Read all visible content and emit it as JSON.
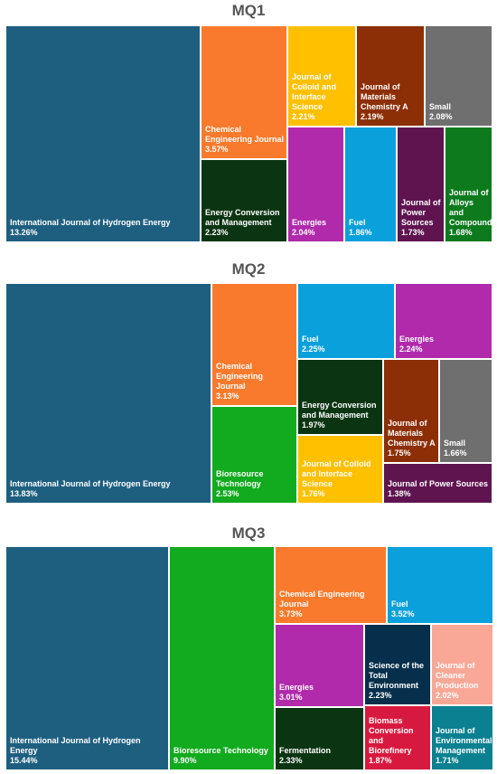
{
  "chart_data": [
    {
      "type": "treemap",
      "title": "MQ1",
      "tiles": [
        {
          "label": "International Journal of Hydrogen Energy",
          "value": "13.26%",
          "color": "#1E5F80"
        },
        {
          "label": "Chemical Engineering Journal",
          "value": "3.57%",
          "color": "#F97A2C"
        },
        {
          "label": "Energy Conversion and Management",
          "value": "2.23%",
          "color": "#0B3512"
        },
        {
          "label": "Journal of Colloid and Interface Science",
          "value": "2.21%",
          "color": "#FFC000"
        },
        {
          "label": "Energies",
          "value": "2.04%",
          "color": "#B02AAB"
        },
        {
          "label": "Journal of Materials Chemistry A",
          "value": "2.19%",
          "color": "#8C2F06"
        },
        {
          "label": "Fuel",
          "value": "1.86%",
          "color": "#0AA0DB"
        },
        {
          "label": "Small",
          "value": "2.08%",
          "color": "#6F6F6F"
        },
        {
          "label": "Journal of Power Sources",
          "value": "1.73%",
          "color": "#5F1450"
        },
        {
          "label": "Journal of Alloys and Compounds",
          "value": "1.68%",
          "color": "#0E7A1E"
        }
      ]
    },
    {
      "type": "treemap",
      "title": "MQ2",
      "tiles": [
        {
          "label": "International Journal of Hydrogen Energy",
          "value": "13.83%",
          "color": "#1E5F80"
        },
        {
          "label": "Chemical Engineering Journal",
          "value": "3.13%",
          "color": "#F97A2C"
        },
        {
          "label": "Bioresource Technology",
          "value": "2.53%",
          "color": "#12AA1E"
        },
        {
          "label": "Fuel",
          "value": "2.25%",
          "color": "#0AA0DB"
        },
        {
          "label": "Energies",
          "value": "2.24%",
          "color": "#B02AAB"
        },
        {
          "label": "Energy Conversion and Management",
          "value": "1.97%",
          "color": "#0B3512"
        },
        {
          "label": "Journal of Materials Chemistry A",
          "value": "1.75%",
          "color": "#8C2F06"
        },
        {
          "label": "Small",
          "value": "1.66%",
          "color": "#6F6F6F"
        },
        {
          "label": "Journal of Colloid and Interface Science",
          "value": "1.76%",
          "color": "#FFC000"
        },
        {
          "label": "Journal of Power Sources",
          "value": "1.38%",
          "color": "#5F1450"
        }
      ]
    },
    {
      "type": "treemap",
      "title": "MQ3",
      "tiles": [
        {
          "label": "International Journal of Hydrogen Energy",
          "value": "15.44%",
          "color": "#1E5F80"
        },
        {
          "label": "Bioresource Technology",
          "value": "9.90%",
          "color": "#12AA1E"
        },
        {
          "label": "Chemical Engineering Journal",
          "value": "3.73%",
          "color": "#F97A2C"
        },
        {
          "label": "Fuel",
          "value": "3.52%",
          "color": "#0AA0DB"
        },
        {
          "label": "Energies",
          "value": "3.01%",
          "color": "#B02AAB"
        },
        {
          "label": "Science of the Total Environment",
          "value": "2.23%",
          "color": "#062F4B"
        },
        {
          "label": "Journal of Cleaner Production",
          "value": "2.02%",
          "color": "#F9A796"
        },
        {
          "label": "Fermentation",
          "value": "2.33%",
          "color": "#0B3512"
        },
        {
          "label": "Biomass Conversion and Biorefinery",
          "value": "1.87%",
          "color": "#D8193F"
        },
        {
          "label": "Journal of Environmental Management",
          "value": "1.71%",
          "color": "#0A8090"
        }
      ]
    }
  ]
}
